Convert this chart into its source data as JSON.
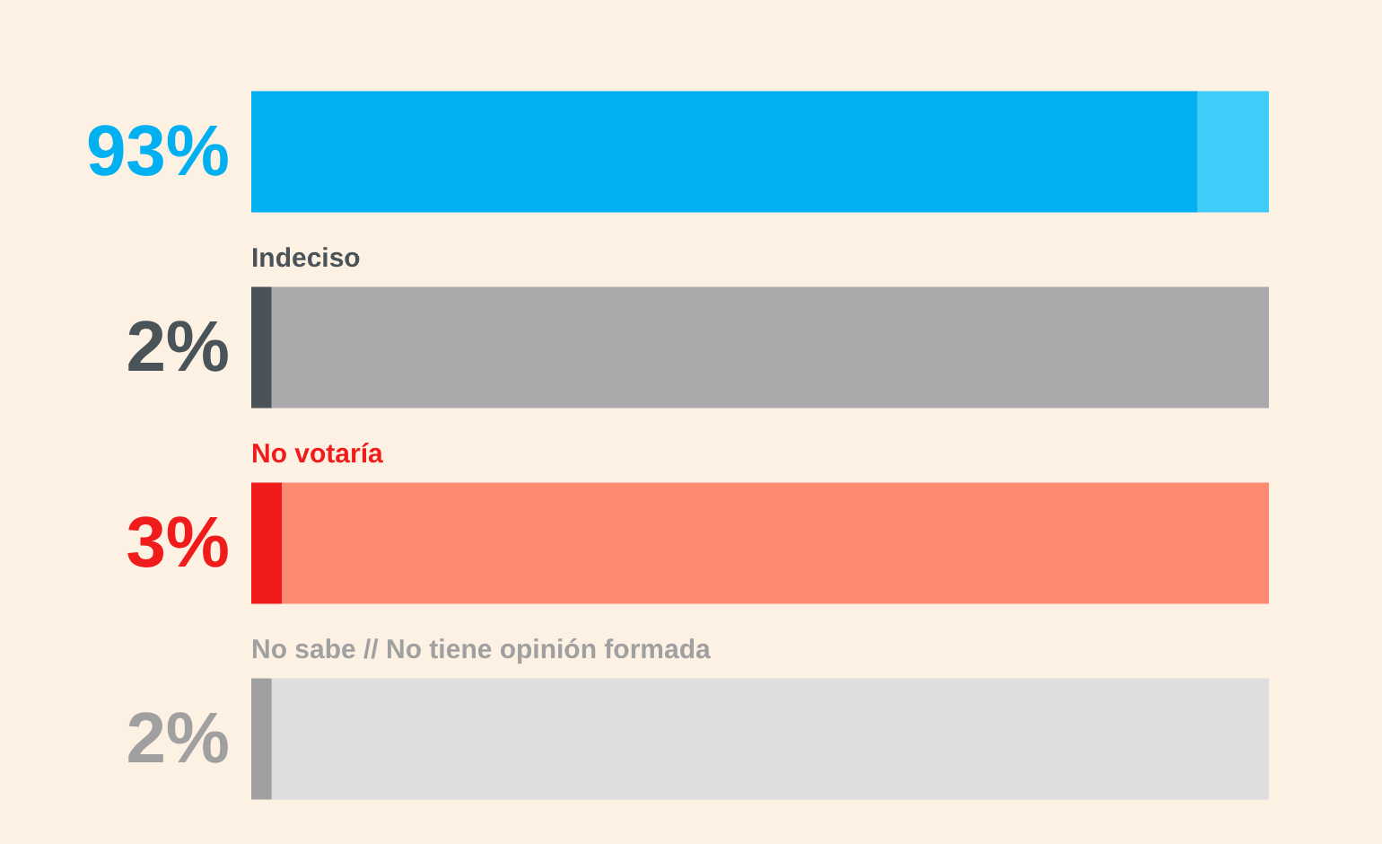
{
  "chart_data": {
    "type": "bar",
    "orientation": "horizontal",
    "stacked": true,
    "categories": [
      null,
      "Indeciso",
      "No votaría",
      "No sabe // No tiene opinión formada"
    ],
    "series": [
      {
        "colors": [
          "#00b0f0",
          "#4a5458",
          "#f01c1c",
          "#a0a0a0"
        ],
        "values": [
          93,
          2,
          3,
          2
        ],
        "value_labels": [
          "93%",
          "2%",
          "3%",
          "2%"
        ]
      },
      {
        "colors": [
          "#40ccf8",
          "#aba9ab",
          "#fd8b72",
          "#dedede"
        ],
        "values": [
          7,
          98,
          97,
          98
        ]
      }
    ],
    "xlim": [
      0,
      100
    ]
  }
}
